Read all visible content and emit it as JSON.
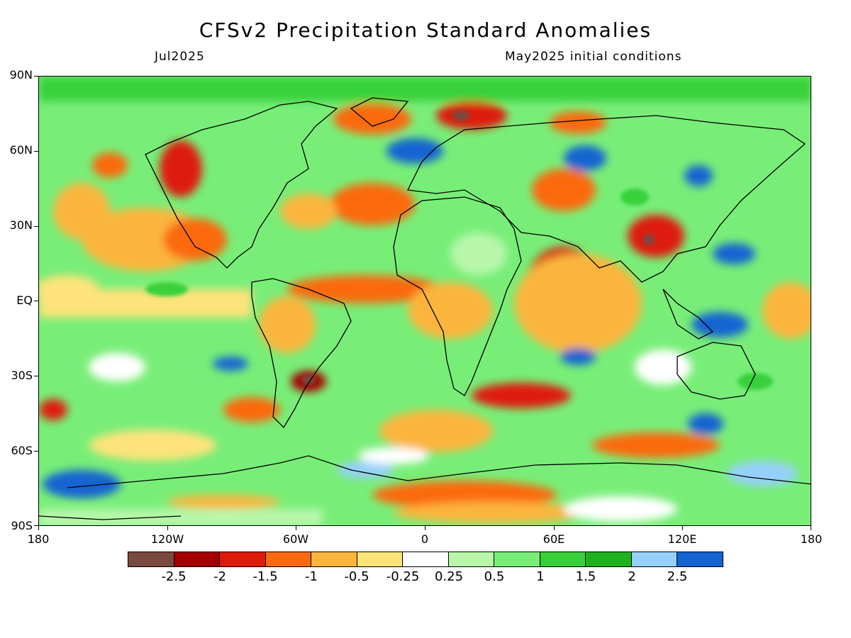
{
  "title": "CFSv2 Precipitation Standard Anomalies",
  "valid_month": "Jul2025",
  "initial_conditions": "May2025 initial conditions",
  "lat_labels": [
    "90N",
    "60N",
    "30N",
    "EQ",
    "30S",
    "60S",
    "90S"
  ],
  "lon_labels": [
    "180",
    "120W",
    "60W",
    "0",
    "60E",
    "120E",
    "180"
  ],
  "colorbar": {
    "colors": [
      "#7a4a40",
      "#a40000",
      "#de1a0a",
      "#fa6a10",
      "#fbb53c",
      "#fde37a",
      "#ffffff",
      "#b8f7aa",
      "#78ee78",
      "#37d03a",
      "#1eb01e",
      "#96d0fa",
      "#1464d2"
    ],
    "labels": [
      "-2.5",
      "-2",
      "-1.5",
      "-1",
      "-0.5",
      "-0.25",
      "0.25",
      "0.5",
      "1",
      "1.5",
      "2",
      "2.5"
    ]
  }
}
